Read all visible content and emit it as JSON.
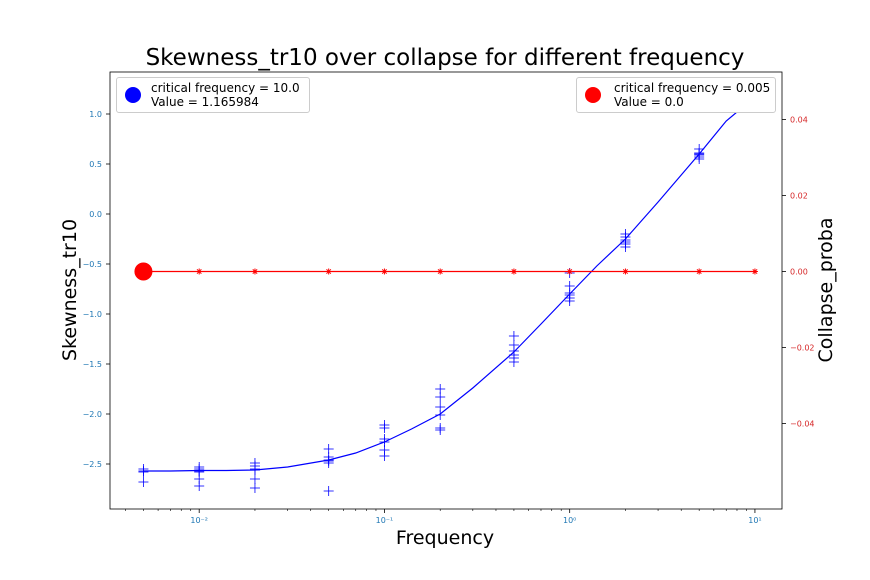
{
  "chart_data": {
    "type": "scatter",
    "title": "Skewness_tr10 over collapse for different frequency",
    "xlabel": "Frequency",
    "ylabel": "Skewness_tr10",
    "ylabel_right": "Collapse_proba",
    "xscale": "log",
    "xlim": [
      0.0033,
      14
    ],
    "ylim": [
      -2.95,
      1.42
    ],
    "ylim_right": [
      -0.0625,
      0.0525
    ],
    "x_ticks": [
      {
        "value": 0.01,
        "label": "10⁻²"
      },
      {
        "value": 0.1,
        "label": "10⁻¹"
      },
      {
        "value": 1,
        "label": "10⁰"
      },
      {
        "value": 10,
        "label": "10¹"
      }
    ],
    "y_ticks": [
      {
        "value": 1.0,
        "label": "1.0"
      },
      {
        "value": 0.5,
        "label": "0.5"
      },
      {
        "value": 0.0,
        "label": "0.0"
      },
      {
        "value": -0.5,
        "label": "−0.5"
      },
      {
        "value": -1.0,
        "label": "−1.0"
      },
      {
        "value": -1.5,
        "label": "−1.5"
      },
      {
        "value": -2.0,
        "label": "−2.0"
      },
      {
        "value": -2.5,
        "label": "−2.5"
      }
    ],
    "y_right_ticks": [
      {
        "value": 0.04,
        "label": "0.04"
      },
      {
        "value": 0.02,
        "label": "0.02"
      },
      {
        "value": 0.0,
        "label": "0.00"
      },
      {
        "value": -0.02,
        "label": "−0.02"
      },
      {
        "value": -0.04,
        "label": "−0.04"
      }
    ],
    "grid": false,
    "series": [
      {
        "kind": "scatter",
        "marker": "plus",
        "color": "#0000ff",
        "axis": "left",
        "points": [
          [
            0.005,
            -2.55
          ],
          [
            0.005,
            -2.57
          ],
          [
            0.005,
            -2.58
          ],
          [
            0.005,
            -2.68
          ],
          [
            0.01,
            -2.53
          ],
          [
            0.01,
            -2.55
          ],
          [
            0.01,
            -2.57
          ],
          [
            0.01,
            -2.58
          ],
          [
            0.01,
            -2.65
          ],
          [
            0.01,
            -2.72
          ],
          [
            0.02,
            -2.49
          ],
          [
            0.02,
            -2.52
          ],
          [
            0.02,
            -2.55
          ],
          [
            0.02,
            -2.56
          ],
          [
            0.02,
            -2.65
          ],
          [
            0.02,
            -2.74
          ],
          [
            0.05,
            -2.35
          ],
          [
            0.05,
            -2.43
          ],
          [
            0.05,
            -2.46
          ],
          [
            0.05,
            -2.47
          ],
          [
            0.05,
            -2.49
          ],
          [
            0.05,
            -2.77
          ],
          [
            0.1,
            -2.11
          ],
          [
            0.1,
            -2.14
          ],
          [
            0.1,
            -2.25
          ],
          [
            0.1,
            -2.28
          ],
          [
            0.1,
            -2.36
          ],
          [
            0.1,
            -2.42
          ],
          [
            0.2,
            -1.75
          ],
          [
            0.2,
            -1.83
          ],
          [
            0.2,
            -1.93
          ],
          [
            0.2,
            -2.01
          ],
          [
            0.2,
            -2.14
          ],
          [
            0.2,
            -2.16
          ],
          [
            0.5,
            -1.22
          ],
          [
            0.5,
            -1.31
          ],
          [
            0.5,
            -1.37
          ],
          [
            0.5,
            -1.41
          ],
          [
            0.5,
            -1.44
          ],
          [
            0.5,
            -1.48
          ],
          [
            1.0,
            -0.59
          ],
          [
            1.0,
            -0.72
          ],
          [
            1.0,
            -0.79
          ],
          [
            1.0,
            -0.81
          ],
          [
            1.0,
            -0.84
          ],
          [
            1.0,
            -0.87
          ],
          [
            2.0,
            -0.2
          ],
          [
            2.0,
            -0.23
          ],
          [
            2.0,
            -0.26
          ],
          [
            2.0,
            -0.28
          ],
          [
            2.0,
            -0.3
          ],
          [
            2.0,
            -0.33
          ],
          [
            5.0,
            0.65
          ],
          [
            5.0,
            0.61
          ],
          [
            5.0,
            0.6
          ],
          [
            5.0,
            0.59
          ],
          [
            5.0,
            0.57
          ],
          [
            5.0,
            0.55
          ]
        ]
      },
      {
        "kind": "line",
        "color": "#0000ff",
        "axis": "left",
        "points": [
          [
            0.005,
            -2.57
          ],
          [
            0.007,
            -2.57
          ],
          [
            0.01,
            -2.565
          ],
          [
            0.014,
            -2.565
          ],
          [
            0.02,
            -2.56
          ],
          [
            0.03,
            -2.53
          ],
          [
            0.05,
            -2.46
          ],
          [
            0.07,
            -2.39
          ],
          [
            0.1,
            -2.28
          ],
          [
            0.14,
            -2.15
          ],
          [
            0.2,
            -2.0
          ],
          [
            0.3,
            -1.74
          ],
          [
            0.5,
            -1.38
          ],
          [
            0.7,
            -1.1
          ],
          [
            1.0,
            -0.8
          ],
          [
            1.4,
            -0.52
          ],
          [
            2.0,
            -0.25
          ],
          [
            3.0,
            0.12
          ],
          [
            5.0,
            0.6
          ],
          [
            7.0,
            0.93
          ],
          [
            10.0,
            1.17
          ]
        ]
      },
      {
        "kind": "line",
        "marker": "star",
        "color": "#ff0000",
        "axis": "right",
        "points": [
          [
            0.005,
            0.0
          ],
          [
            0.01,
            0.0
          ],
          [
            0.02,
            0.0
          ],
          [
            0.05,
            0.0
          ],
          [
            0.1,
            0.0
          ],
          [
            0.2,
            0.0
          ],
          [
            0.5,
            0.0
          ],
          [
            1.0,
            0.0
          ],
          [
            2.0,
            0.0
          ],
          [
            5.0,
            0.0
          ],
          [
            10.0,
            0.0
          ]
        ]
      }
    ],
    "critical_points": [
      {
        "x": 10.0,
        "y": 1.165984,
        "axis": "left",
        "color": "#0000ff"
      },
      {
        "x": 0.005,
        "y": 0.0,
        "axis": "right",
        "color": "#ff0000"
      }
    ],
    "legends": [
      {
        "placement": "top-left",
        "color": "#0000ff",
        "line1": "critical frequency = 10.0",
        "line2": "Value = 1.165984"
      },
      {
        "placement": "top-right",
        "color": "#ff0000",
        "line1": "critical frequency = 0.005",
        "line2": "Value = 0.0"
      }
    ]
  }
}
